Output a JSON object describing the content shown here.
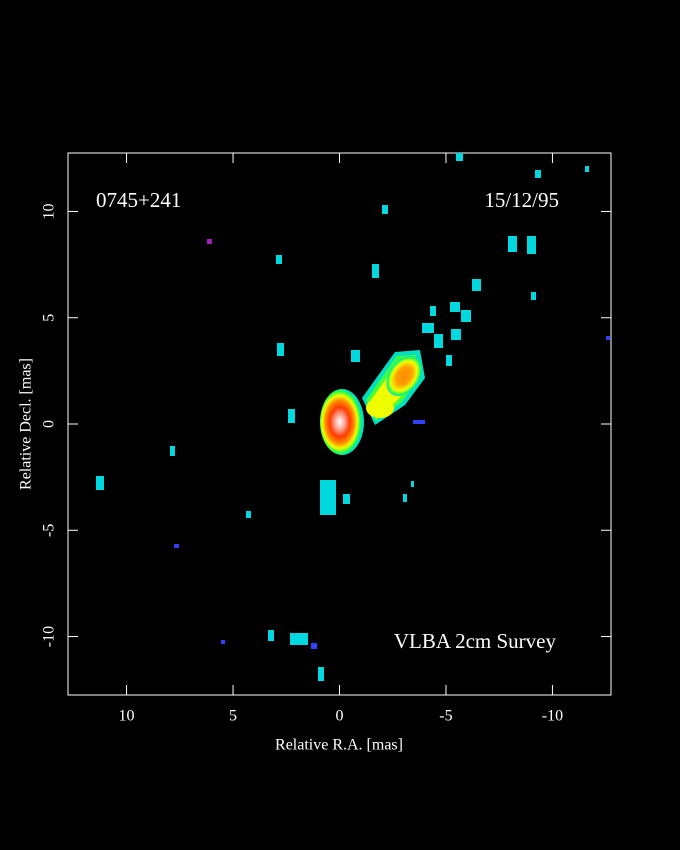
{
  "chart_data": {
    "type": "image",
    "annotations": [
      "0745+241",
      "15/12/95",
      "VLBA 2cm Survey"
    ],
    "x_label": "Relative R.A. [mas]",
    "y_label": "Relative Decl. [mas]",
    "xlim": [
      12.75,
      -12.75
    ],
    "ylim": [
      -12.75,
      12.75
    ],
    "xticks": [
      10,
      5,
      0,
      -5,
      -10
    ],
    "yticks": [
      -10,
      -5,
      0,
      5,
      10
    ]
  }
}
